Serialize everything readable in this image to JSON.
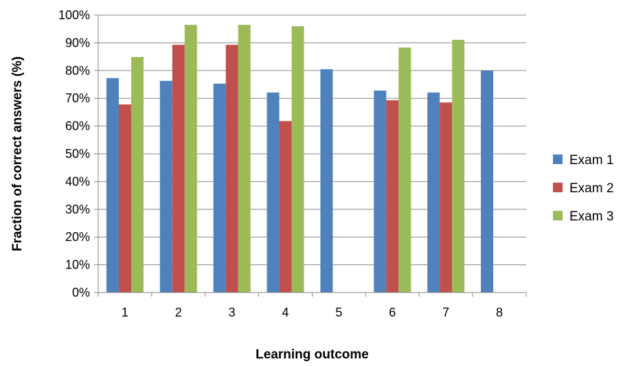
{
  "chart_data": {
    "type": "bar",
    "title": "",
    "xlabel": "Learning outcome",
    "ylabel": "Fraction of correct answers (%)",
    "ylim": [
      0,
      100
    ],
    "ytick_values": [
      0,
      10,
      20,
      30,
      40,
      50,
      60,
      70,
      80,
      90,
      100
    ],
    "ytick_labels": [
      "0%",
      "10%",
      "20%",
      "30%",
      "40%",
      "50%",
      "60%",
      "70%",
      "80%",
      "90%",
      "100%"
    ],
    "grid": true,
    "legend_position": "right",
    "categories": [
      "1",
      "2",
      "3",
      "4",
      "5",
      "6",
      "7",
      "8"
    ],
    "series": [
      {
        "name": "Exam 1",
        "color": "#4F81BD",
        "values": [
          77.3,
          76.3,
          75.3,
          72.1,
          80.5,
          72.8,
          72.1,
          80.0
        ]
      },
      {
        "name": "Exam 2",
        "color": "#C0504D",
        "values": [
          67.8,
          89.3,
          89.3,
          61.8,
          null,
          69.3,
          68.5,
          null
        ]
      },
      {
        "name": "Exam 3",
        "color": "#9BBB59",
        "values": [
          84.9,
          96.5,
          96.5,
          96.0,
          null,
          88.3,
          91.1,
          null
        ]
      }
    ]
  }
}
